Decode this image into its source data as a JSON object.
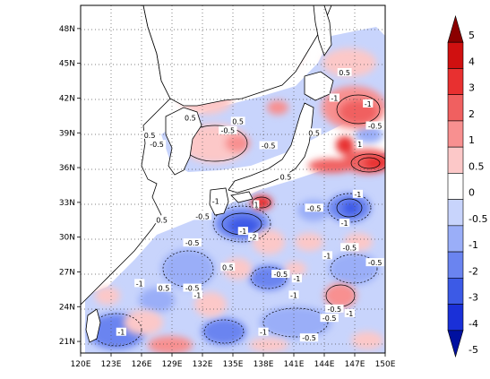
{
  "map": {
    "lon_ticks": [
      "120E",
      "123E",
      "126E",
      "129E",
      "132E",
      "135E",
      "138E",
      "141E",
      "144E",
      "147E",
      "150E"
    ],
    "lat_ticks": [
      "21N",
      "24N",
      "27N",
      "30N",
      "33N",
      "36N",
      "39N",
      "42N",
      "45N",
      "48N"
    ],
    "lon_range": [
      120,
      150
    ],
    "lat_range": [
      20,
      50
    ],
    "grid": "dotted",
    "contour_labels": [
      {
        "text": "0.5",
        "lon": 130.8,
        "lat": 40.3
      },
      {
        "text": "0.5",
        "lon": 126.8,
        "lat": 38.8
      },
      {
        "text": "-0.5",
        "lon": 127.5,
        "lat": 38.0
      },
      {
        "text": "-0.5",
        "lon": 134.5,
        "lat": 39.2
      },
      {
        "text": "0.5",
        "lon": 135.5,
        "lat": 40.0
      },
      {
        "text": "-0.5",
        "lon": 138.5,
        "lat": 37.9
      },
      {
        "text": "0.5",
        "lon": 143.0,
        "lat": 39.0
      },
      {
        "text": "-1",
        "lon": 145.0,
        "lat": 42.0
      },
      {
        "text": "-1",
        "lon": 148.3,
        "lat": 41.5
      },
      {
        "text": "-0.5",
        "lon": 149.0,
        "lat": 39.6
      },
      {
        "text": "1",
        "lon": 147.5,
        "lat": 38.0
      },
      {
        "text": "0.5",
        "lon": 146.0,
        "lat": 44.2
      },
      {
        "text": "0.5",
        "lon": 140.2,
        "lat": 35.2
      },
      {
        "text": "-0.5",
        "lon": 143.0,
        "lat": 32.5
      },
      {
        "text": "-1",
        "lon": 147.3,
        "lat": 33.7
      },
      {
        "text": "1",
        "lon": 137.3,
        "lat": 32.8
      },
      {
        "text": "-1",
        "lon": 133.3,
        "lat": 33.1
      },
      {
        "text": "-1",
        "lon": 136.0,
        "lat": 30.5
      },
      {
        "text": "-2",
        "lon": 137.0,
        "lat": 30.0
      },
      {
        "text": "-0.5",
        "lon": 132.0,
        "lat": 31.8
      },
      {
        "text": "0.5",
        "lon": 128.0,
        "lat": 31.5
      },
      {
        "text": "-0.5",
        "lon": 131.0,
        "lat": 29.5
      },
      {
        "text": "-1",
        "lon": 146.0,
        "lat": 31.2
      },
      {
        "text": "-0.5",
        "lon": 146.5,
        "lat": 29.1
      },
      {
        "text": "-1",
        "lon": 144.3,
        "lat": 28.4
      },
      {
        "text": "0.5",
        "lon": 134.5,
        "lat": 27.4
      },
      {
        "text": "-0.5",
        "lon": 139.7,
        "lat": 26.8
      },
      {
        "text": "-1",
        "lon": 141.3,
        "lat": 26.4
      },
      {
        "text": "-0.5",
        "lon": 149.0,
        "lat": 27.8
      },
      {
        "text": "-1",
        "lon": 125.8,
        "lat": 26.0
      },
      {
        "text": "0.5",
        "lon": 128.2,
        "lat": 25.6
      },
      {
        "text": "-0.5",
        "lon": 131.0,
        "lat": 25.6
      },
      {
        "text": "-1",
        "lon": 131.5,
        "lat": 25.0
      },
      {
        "text": "-1",
        "lon": 141.0,
        "lat": 25.0
      },
      {
        "text": "-0.5",
        "lon": 145.0,
        "lat": 23.8
      },
      {
        "text": "-0.5",
        "lon": 144.5,
        "lat": 23.0
      },
      {
        "text": "-1",
        "lon": 146.5,
        "lat": 23.4
      },
      {
        "text": "-1",
        "lon": 138.0,
        "lat": 21.8
      },
      {
        "text": "-0.5",
        "lon": 142.5,
        "lat": 21.3
      },
      {
        "text": "-1",
        "lon": 124.0,
        "lat": 21.8
      }
    ]
  },
  "colorbar": {
    "levels": [
      "5",
      "4",
      "3",
      "2",
      "1",
      "0.5",
      "0",
      "-0.5",
      "-1",
      "-2",
      "-3",
      "-4",
      "-5"
    ],
    "colors": [
      "#8b0000",
      "#d01010",
      "#e83030",
      "#f06060",
      "#f89090",
      "#fcc8c8",
      "#ffffff",
      "#c8d4fc",
      "#9aaef8",
      "#6a84f0",
      "#3c5ae6",
      "#1a30d8",
      "#0010a0"
    ]
  }
}
